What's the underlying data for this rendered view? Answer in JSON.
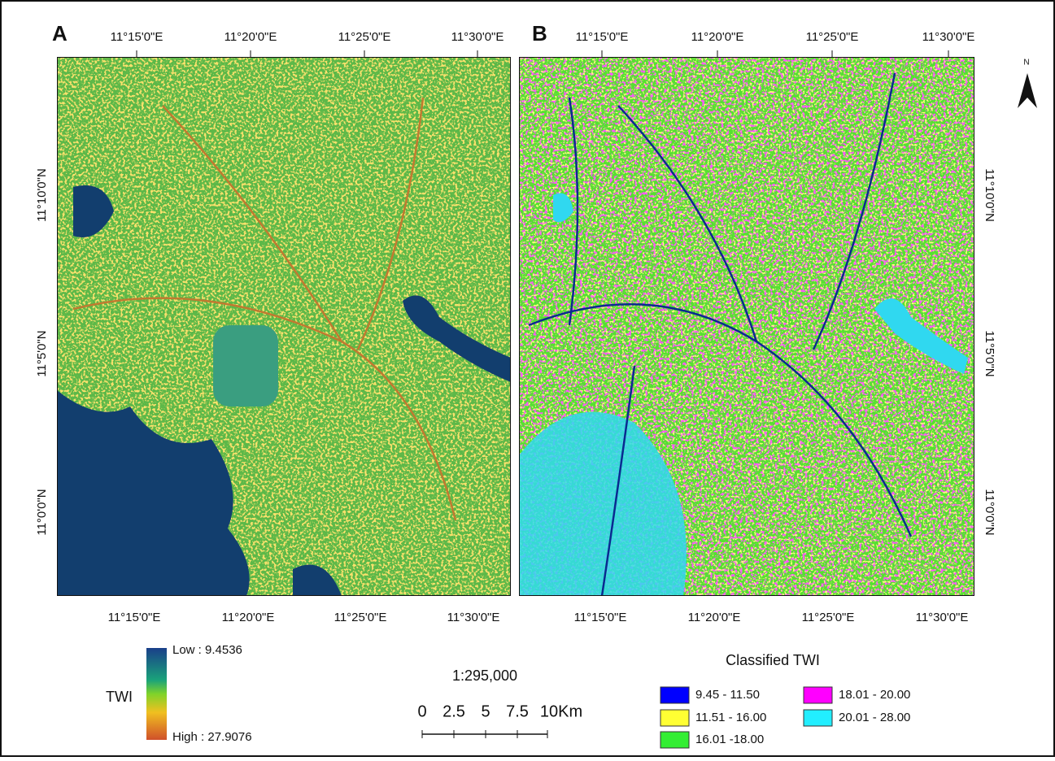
{
  "panels": [
    {
      "label": "A",
      "top_ticks": [
        "11°15'0\"E",
        "11°20'0\"E",
        "11°25'0\"E",
        "11°30'0\"E"
      ],
      "bottom_ticks": [
        "11°15'0\"E",
        "11°20'0\"E",
        "11°25'0\"E",
        "11°30'0\"E"
      ],
      "side_ticks": [
        "11°10'0\"N",
        "11°5'0\"N",
        "11°0'0\"N"
      ]
    },
    {
      "label": "B",
      "top_ticks": [
        "11°15'0\"E",
        "11°20'0\"E",
        "11°25'0\"E",
        "11°30'0\"E"
      ],
      "bottom_ticks": [
        "11°15'0\"E",
        "11°20'0\"E",
        "11°25'0\"E",
        "11°30'0\"E"
      ],
      "side_ticks": [
        "11°10'0\"N",
        "11°5'0\"N",
        "11°0'0\"N"
      ]
    }
  ],
  "twi_legend": {
    "title": "TWI",
    "low": "Low : 9.4536",
    "high": "High : 27.9076"
  },
  "scale": {
    "ratio": "1:295,000",
    "labels": [
      "0",
      "2.5",
      "5",
      "7.5",
      "10Km"
    ]
  },
  "classified_legend": {
    "title": "Classified TWI",
    "classes": [
      {
        "label": "9.45 - 11.50",
        "color": "#0000ff"
      },
      {
        "label": "11.51 - 16.00",
        "color": "#ffff33"
      },
      {
        "label": "16.01 -18.00",
        "color": "#33ee33"
      },
      {
        "label": "18.01 - 20.00",
        "color": "#ff00ff"
      },
      {
        "label": "20.01 - 28.00",
        "color": "#22eeff"
      }
    ]
  },
  "north": "N"
}
